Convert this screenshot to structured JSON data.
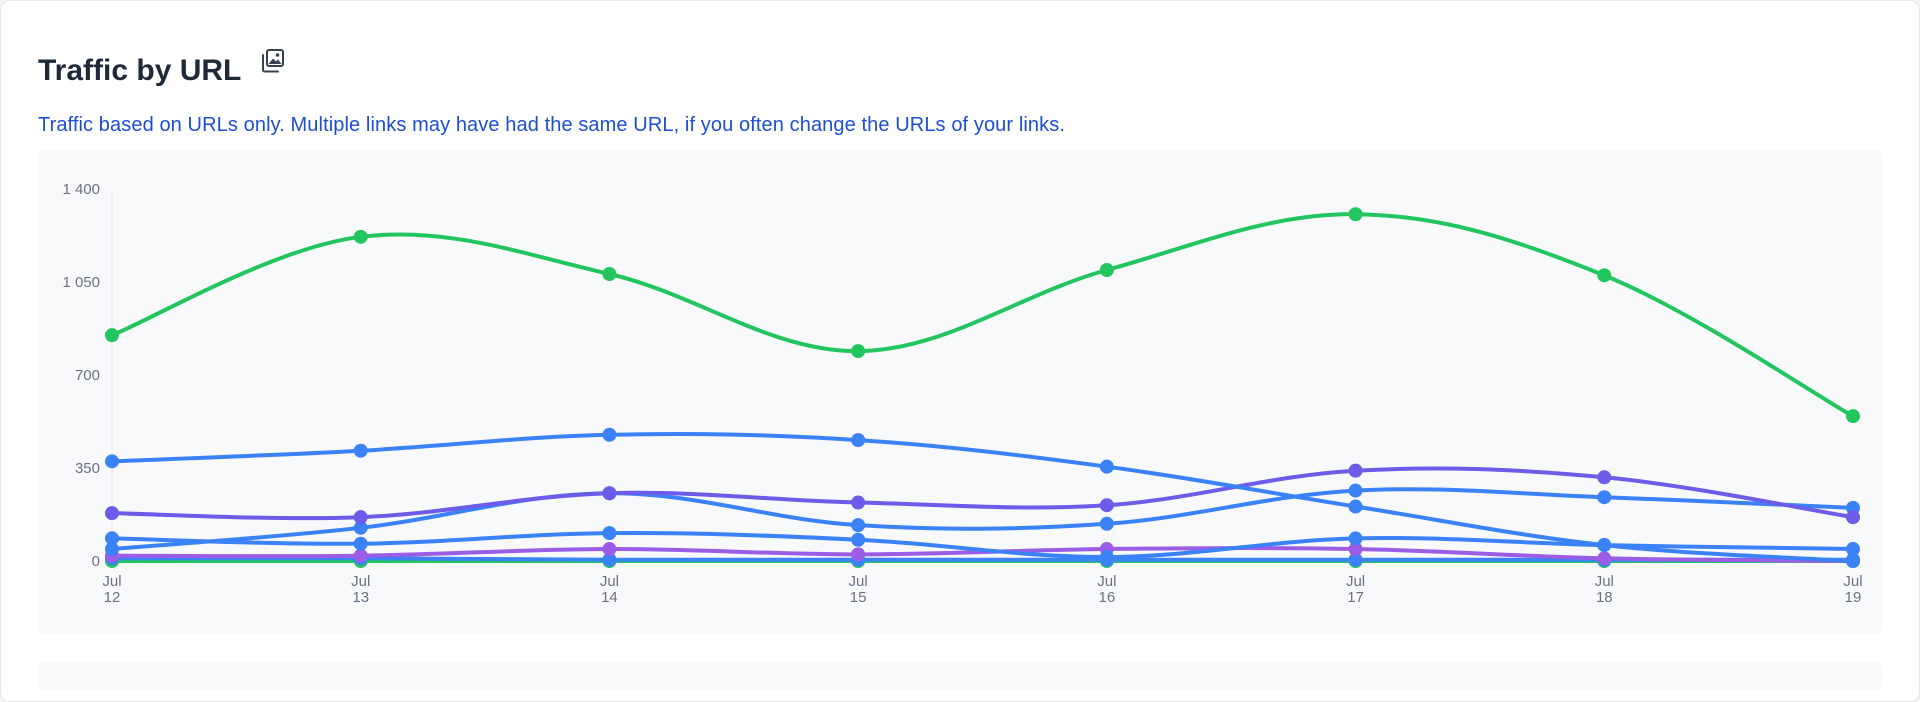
{
  "header": {
    "title": "Traffic by URL",
    "subtitle": "Traffic based on URLs only. Multiple links may have had the same URL, if you often change the URLs of your links."
  },
  "icons": {
    "export": "image-export-icon"
  },
  "chart_data": {
    "type": "line",
    "categories": [
      [
        "Jul",
        "12"
      ],
      [
        "Jul",
        "13"
      ],
      [
        "Jul",
        "14"
      ],
      [
        "Jul",
        "15"
      ],
      [
        "Jul",
        "16"
      ],
      [
        "Jul",
        "17"
      ],
      [
        "Jul",
        "18"
      ],
      [
        "Jul",
        "19"
      ]
    ],
    "ylim": [
      0,
      1400
    ],
    "yticks": [
      0,
      350,
      700,
      1050,
      1400
    ],
    "ytick_labels": [
      "0",
      "350",
      "700",
      "1 050",
      "1 400"
    ],
    "grid": false,
    "legend": "none",
    "series": [
      {
        "color": "#22c55e",
        "values": [
          850,
          1220,
          1080,
          790,
          1095,
          1305,
          1075,
          545
        ]
      },
      {
        "color": "#3b82f6",
        "values": [
          375,
          415,
          475,
          455,
          355,
          205,
          60,
          0
        ]
      },
      {
        "color": "#6c5ce7",
        "values": [
          180,
          165,
          255,
          220,
          210,
          340,
          315,
          165
        ]
      },
      {
        "color": "#3b82f6",
        "values": [
          45,
          125,
          255,
          135,
          140,
          265,
          240,
          200
        ]
      },
      {
        "color": "#3b82f6",
        "values": [
          85,
          65,
          105,
          80,
          15,
          85,
          60,
          45
        ]
      },
      {
        "color": "#9b5de5",
        "values": [
          20,
          20,
          45,
          25,
          45,
          45,
          10,
          0
        ]
      },
      {
        "color": "#3b82f6",
        "values": [
          10,
          10,
          5,
          5,
          5,
          5,
          5,
          5
        ]
      },
      {
        "color": "#22c55e",
        "values": [
          0,
          0,
          0,
          0,
          0,
          0,
          0,
          0
        ]
      }
    ]
  }
}
